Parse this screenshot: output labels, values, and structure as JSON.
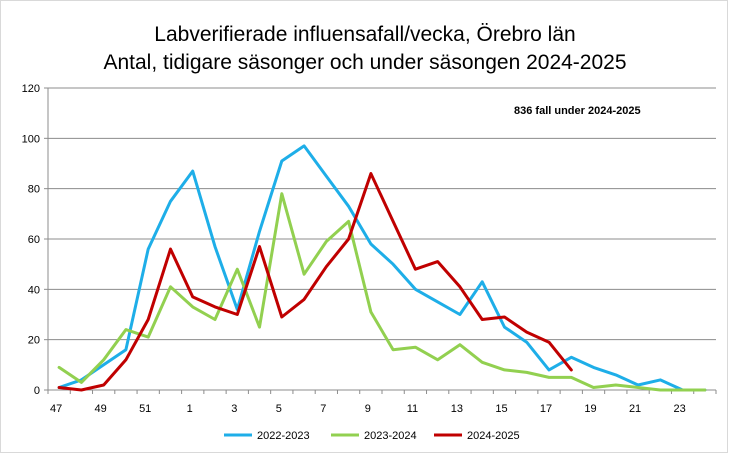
{
  "chart_data": {
    "type": "line",
    "title": "Labverifierade influensafall/vecka, Örebro län",
    "subtitle": "Antal, tidigare säsonger och  under säsongen 2024-2025",
    "annotation": "836  fall under 2024-2025",
    "xlabel": "",
    "ylabel": "",
    "ylim": [
      0,
      120
    ],
    "yticks": [
      0,
      20,
      40,
      60,
      80,
      100,
      120
    ],
    "grid": true,
    "legend_position": "bottom",
    "x": [
      47,
      48,
      49,
      50,
      51,
      52,
      1,
      2,
      3,
      4,
      5,
      6,
      7,
      8,
      9,
      10,
      11,
      12,
      13,
      14,
      15,
      16,
      17,
      18,
      19,
      20,
      21,
      22,
      23,
      24
    ],
    "x_tick_labels": [
      "47",
      "",
      "49",
      "",
      "51",
      "",
      "1",
      "",
      "3",
      "",
      "5",
      "",
      "7",
      "",
      "9",
      "",
      "11",
      "",
      "13",
      "",
      "15",
      "",
      "17",
      "",
      "19",
      "",
      "21",
      "",
      "23",
      ""
    ],
    "series": [
      {
        "name": "2022-2023",
        "color": "#1eaee8",
        "values": [
          1,
          4,
          10,
          16,
          56,
          75,
          87,
          57,
          32,
          63,
          91,
          97,
          85,
          73,
          58,
          50,
          40,
          35,
          30,
          43,
          25,
          19,
          8,
          13,
          9,
          6,
          2,
          4,
          0,
          0
        ]
      },
      {
        "name": "2023-2024",
        "color": "#92d050",
        "values": [
          9,
          3,
          12,
          24,
          21,
          41,
          33,
          28,
          48,
          25,
          78,
          46,
          59,
          67,
          31,
          16,
          17,
          12,
          18,
          11,
          8,
          7,
          5,
          5,
          1,
          2,
          1,
          0,
          0,
          0
        ]
      },
      {
        "name": "2024-2025",
        "color": "#c00000",
        "values": [
          1,
          0,
          2,
          12,
          28,
          56,
          37,
          33,
          30,
          57,
          29,
          36,
          49,
          60,
          86,
          67,
          48,
          51,
          41,
          28,
          29,
          23,
          19,
          8,
          null,
          null,
          null,
          null,
          null,
          null
        ]
      }
    ]
  }
}
